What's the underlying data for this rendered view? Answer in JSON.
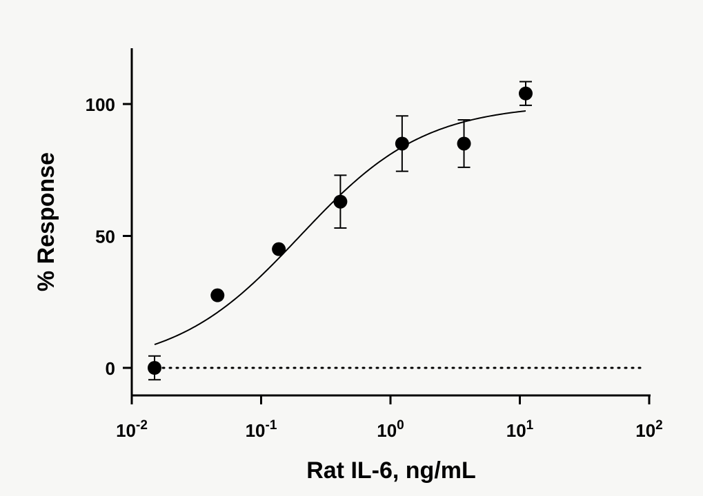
{
  "chart_data": {
    "type": "scatter",
    "xlabel": "Rat IL-6, ng/mL",
    "ylabel": "% Response",
    "x_scale": "log",
    "xlim": [
      0.01,
      100
    ],
    "ylim": [
      -10,
      120
    ],
    "x_ticks": [
      {
        "value": 0.01,
        "base": "10",
        "exp": "-2"
      },
      {
        "value": 0.1,
        "base": "10",
        "exp": "-1"
      },
      {
        "value": 1,
        "base": "10",
        "exp": "0"
      },
      {
        "value": 10,
        "base": "10",
        "exp": "1"
      },
      {
        "value": 100,
        "base": "10",
        "exp": "2"
      }
    ],
    "y_ticks": [
      0,
      50,
      100
    ],
    "grid": false,
    "reference_line": {
      "y": 0,
      "style": "dotted"
    },
    "series": [
      {
        "type": "scatter",
        "x": [
          0.015,
          0.046,
          0.137,
          0.41,
          1.23,
          3.7,
          11.1
        ],
        "y": [
          0,
          27.5,
          45,
          63,
          85,
          85,
          104
        ],
        "error": [
          4.5,
          0,
          0,
          10,
          10.5,
          9,
          4.5
        ]
      },
      {
        "type": "fit-curve",
        "model": "4PL",
        "bottom": 0,
        "top": 100,
        "ec50": 0.2,
        "hill": 0.9,
        "x_range": [
          0.015,
          11.1
        ]
      }
    ]
  }
}
